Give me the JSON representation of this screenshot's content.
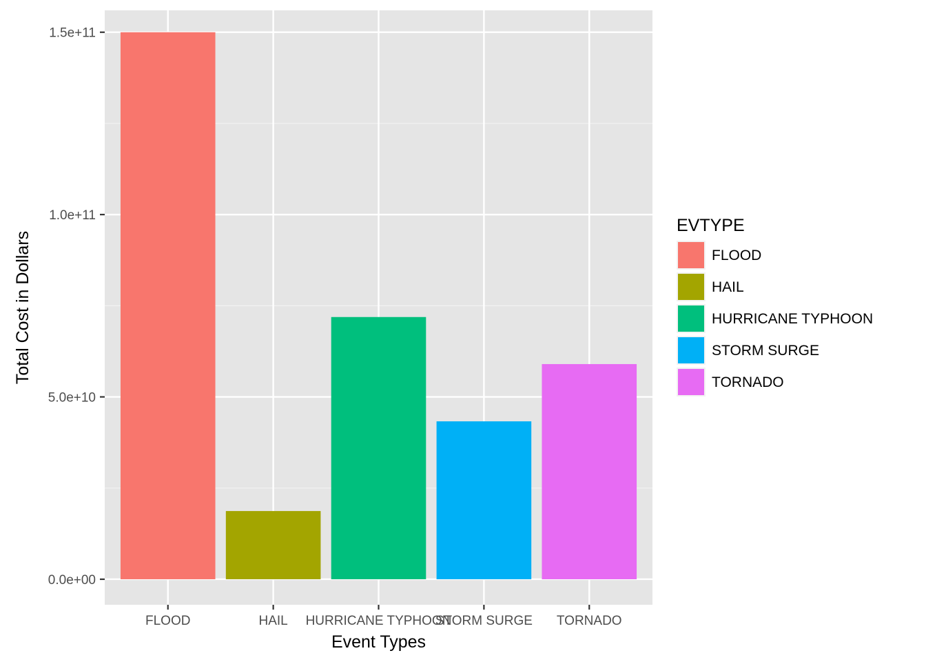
{
  "chart_data": {
    "type": "bar",
    "categories": [
      "FLOOD",
      "HAIL",
      "HURRICANE TYPHOON",
      "STORM SURGE",
      "TORNADO"
    ],
    "values": [
      150000000000,
      18700000000,
      71900000000,
      43300000000,
      59000000000
    ],
    "colors": [
      "#F8766D",
      "#A3A500",
      "#00BF7D",
      "#00B0F6",
      "#E76BF3"
    ],
    "xlabel": "Event Types",
    "ylabel": "Total Cost in Dollars",
    "ylim": [
      -7000000000,
      156000000000
    ],
    "yticks": [
      0,
      50000000000,
      100000000000,
      150000000000
    ],
    "ytick_labels": [
      "0.0e+00",
      "5.0e+10",
      "1.0e+11",
      "1.5e+11"
    ],
    "grid": true,
    "legend": {
      "title": "EVTYPE",
      "placement": "right",
      "items": [
        "FLOOD",
        "HAIL",
        "HURRICANE TYPHOON",
        "STORM SURGE",
        "TORNADO"
      ]
    }
  }
}
